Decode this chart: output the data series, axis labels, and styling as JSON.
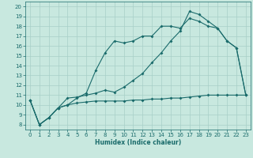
{
  "title": "",
  "xlabel": "Humidex (Indice chaleur)",
  "xlim": [
    -0.5,
    23.5
  ],
  "ylim": [
    7.5,
    20.5
  ],
  "xticks": [
    0,
    1,
    2,
    3,
    4,
    5,
    6,
    7,
    8,
    9,
    10,
    11,
    12,
    13,
    14,
    15,
    16,
    17,
    18,
    19,
    20,
    21,
    22,
    23
  ],
  "yticks": [
    8,
    9,
    10,
    11,
    12,
    13,
    14,
    15,
    16,
    17,
    18,
    19,
    20
  ],
  "bg_color": "#c8e8df",
  "grid_color": "#a8cfc8",
  "line_color": "#1a6b6b",
  "line1_x": [
    0,
    1,
    2,
    3,
    4,
    5,
    6,
    7,
    8,
    9,
    10,
    11,
    12,
    13,
    14,
    15,
    16,
    17,
    18,
    19,
    20,
    21,
    22,
    23
  ],
  "line1_y": [
    10.5,
    8.0,
    8.7,
    9.7,
    10.0,
    10.7,
    11.2,
    13.5,
    15.3,
    16.5,
    16.3,
    16.5,
    17.0,
    17.0,
    18.0,
    18.0,
    17.8,
    18.8,
    18.5,
    18.0,
    17.8,
    16.5,
    15.8,
    11.0
  ],
  "line2_x": [
    0,
    1,
    2,
    3,
    4,
    5,
    6,
    7,
    8,
    9,
    10,
    11,
    12,
    13,
    14,
    15,
    16,
    17,
    18,
    19,
    20,
    21,
    22,
    23
  ],
  "line2_y": [
    10.5,
    8.0,
    8.7,
    9.7,
    10.7,
    10.8,
    11.0,
    11.2,
    11.5,
    11.3,
    11.8,
    12.5,
    13.2,
    14.3,
    15.3,
    16.5,
    17.5,
    19.5,
    19.2,
    18.5,
    17.8,
    16.5,
    15.8,
    11.0
  ],
  "line3_x": [
    0,
    1,
    2,
    3,
    4,
    5,
    6,
    7,
    8,
    9,
    10,
    11,
    12,
    13,
    14,
    15,
    16,
    17,
    18,
    19,
    20,
    21,
    22,
    23
  ],
  "line3_y": [
    10.5,
    8.0,
    8.7,
    9.7,
    10.0,
    10.2,
    10.3,
    10.4,
    10.4,
    10.4,
    10.4,
    10.5,
    10.5,
    10.6,
    10.6,
    10.7,
    10.7,
    10.8,
    10.9,
    11.0,
    11.0,
    11.0,
    11.0,
    11.0
  ],
  "marker_size": 2.0,
  "line_width": 0.8,
  "tick_fontsize": 5.0,
  "xlabel_fontsize": 5.5
}
